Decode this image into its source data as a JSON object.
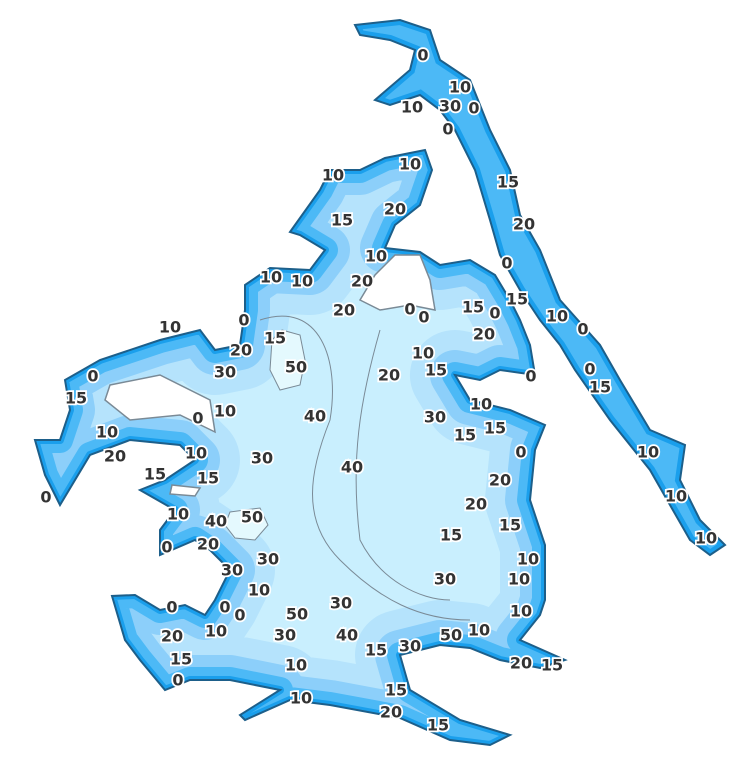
{
  "map": {
    "type": "bathymetric depth contour map",
    "colors": {
      "shore": "#1d5f8a",
      "band_0_10": "#1a9fec",
      "band_10_15": "#4cb9f6",
      "band_15_20": "#8ccffa",
      "band_20_30": "#b5e3fc",
      "band_30_50": "#c9effe",
      "band_50_plus": "#e4f9fe",
      "land": "#ffffff",
      "contour_line": "#7a8a96",
      "label_text": "#333333"
    },
    "depth_labels": [
      "0",
      "10",
      "10",
      "30",
      "0",
      "0",
      "10",
      "10",
      "15",
      "20",
      "15",
      "20",
      "10",
      "0",
      "10",
      "10",
      "20",
      "15",
      "20",
      "0",
      "0",
      "15",
      "0",
      "10",
      "0",
      "10",
      "15",
      "0",
      "20",
      "20",
      "10",
      "50",
      "20",
      "15",
      "30",
      "0",
      "0",
      "0",
      "15",
      "15",
      "0",
      "10",
      "40",
      "30",
      "10",
      "15",
      "15",
      "10",
      "10",
      "0",
      "10",
      "20",
      "30",
      "40",
      "15",
      "15",
      "20",
      "0",
      "10",
      "20",
      "10",
      "40",
      "50",
      "15",
      "15",
      "0",
      "20",
      "10",
      "30",
      "10",
      "30",
      "30",
      "10",
      "10",
      "0",
      "0",
      "0",
      "30",
      "10",
      "50",
      "10",
      "20",
      "30",
      "40",
      "50",
      "10",
      "15",
      "30",
      "15",
      "10",
      "20",
      "15",
      "0",
      "15",
      "10",
      "20",
      "15"
    ]
  }
}
